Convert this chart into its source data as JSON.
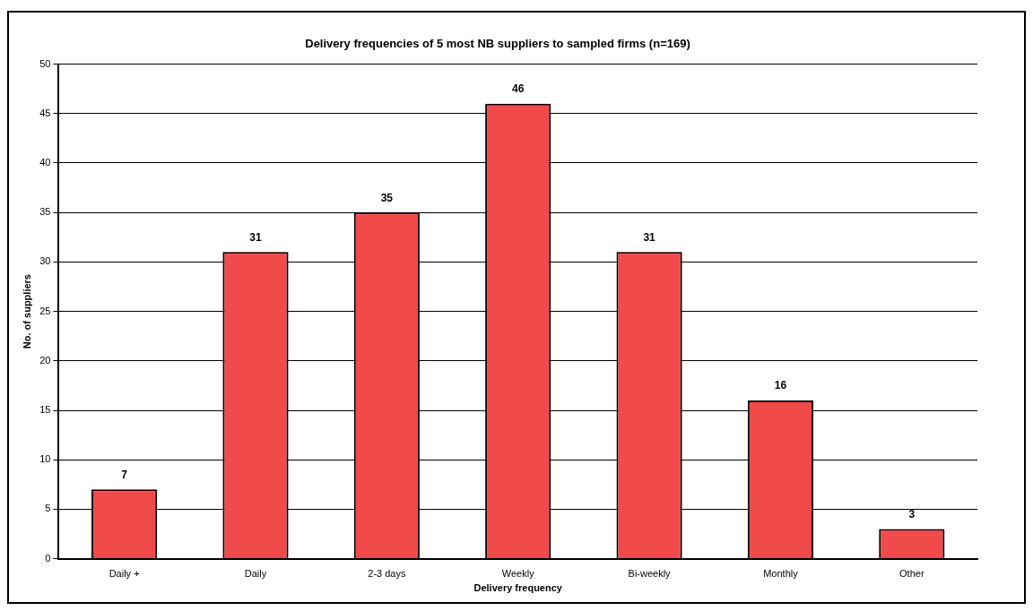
{
  "chart_data": {
    "type": "bar",
    "title": "Delivery frequencies of 5 most NB suppliers to sampled firms (n=169)",
    "xlabel": "Delivery frequency",
    "ylabel": "No. of suppliers",
    "categories": [
      "Daily +",
      "Daily",
      "2-3 days",
      "Weekly",
      "Bi-weekly",
      "Monthly",
      "Other"
    ],
    "values": [
      7,
      31,
      35,
      46,
      31,
      16,
      3
    ],
    "color": "#f04a4a",
    "ylim": [
      0,
      50
    ],
    "yticks": [
      0,
      5,
      10,
      15,
      20,
      25,
      30,
      35,
      40,
      45,
      50
    ],
    "grid": "y",
    "data_labels": true,
    "legend": false
  }
}
